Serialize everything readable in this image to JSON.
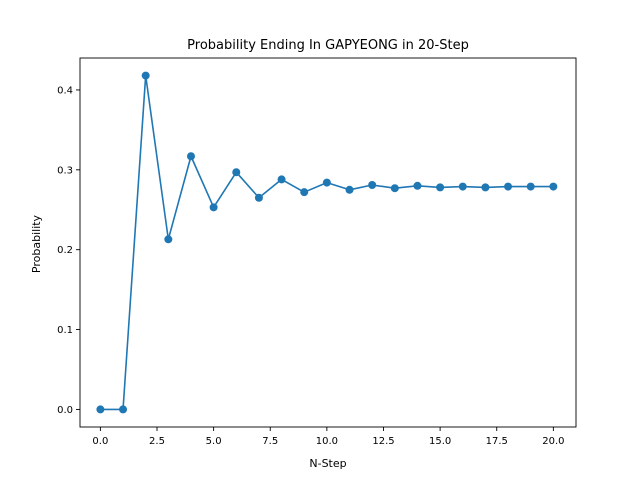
{
  "chart_data": {
    "type": "line",
    "title": "Probability Ending In GAPYEONG in 20-Step",
    "xlabel": "N-Step",
    "ylabel": "Probability",
    "x": [
      0,
      1,
      2,
      3,
      4,
      5,
      6,
      7,
      8,
      9,
      10,
      11,
      12,
      13,
      14,
      15,
      16,
      17,
      18,
      19,
      20
    ],
    "series": [
      {
        "values": [
          0.0,
          0.0,
          0.418,
          0.213,
          0.317,
          0.253,
          0.297,
          0.265,
          0.288,
          0.272,
          0.284,
          0.275,
          0.281,
          0.277,
          0.28,
          0.278,
          0.279,
          0.278,
          0.279,
          0.279,
          0.279
        ],
        "color": "#1f77b4",
        "marker": "circle"
      }
    ],
    "xlim": [
      -0.9,
      21.0
    ],
    "ylim": [
      -0.022,
      0.44
    ],
    "xticks": [
      0.0,
      2.5,
      5.0,
      7.5,
      10.0,
      12.5,
      15.0,
      17.5,
      20.0
    ],
    "xtick_labels": [
      "0.0",
      "2.5",
      "5.0",
      "7.5",
      "10.0",
      "12.5",
      "15.0",
      "17.5",
      "20.0"
    ],
    "yticks": [
      0.0,
      0.1,
      0.2,
      0.3,
      0.4
    ],
    "ytick_labels": [
      "0.0",
      "0.1",
      "0.2",
      "0.3",
      "0.4"
    ],
    "grid": false,
    "legend": "none"
  }
}
